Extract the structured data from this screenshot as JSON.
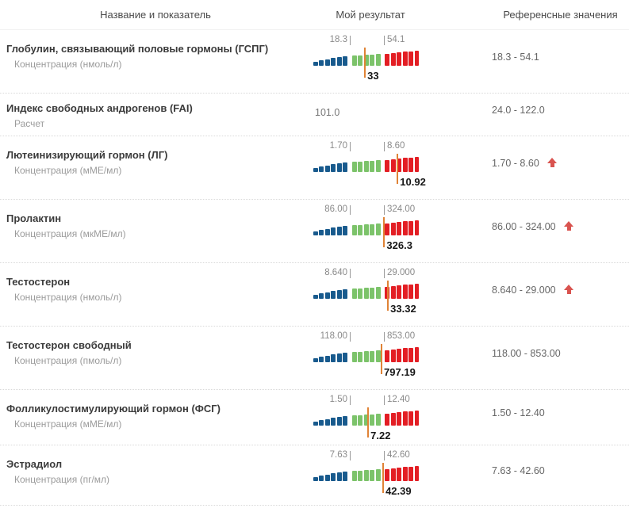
{
  "header": {
    "col_name": "Название и показатель",
    "col_result": "Мой результат",
    "col_reference": "Референсные значения"
  },
  "colors": {
    "bar_blue": "#185a8d",
    "bar_green": "#7cc36a",
    "bar_red": "#e31e24",
    "marker_orange": "#e08336",
    "arrow_red": "#d9534f"
  },
  "rows": [
    {
      "name": "Глобулин, связывающий половые гормоны (ГСПГ)",
      "indicator": "Концентрация (нмоль/л)",
      "type": "chart",
      "range_min": "18.3",
      "range_max": "54.1",
      "result": "33",
      "reference": "18.3 - 54.1",
      "above_range_flag": false,
      "marker_pct": 47.5
    },
    {
      "name": "Индекс свободных андрогенов (FAI)",
      "indicator": "Расчет",
      "type": "text",
      "result": "101.0",
      "reference": "24.0 - 122.0",
      "above_range_flag": false
    },
    {
      "name": "Лютеинизирующий гормон (ЛГ)",
      "indicator": "Концентрация (мМЕ/мл)",
      "type": "chart",
      "range_min": "1.70",
      "range_max": "8.60",
      "result": "10.92",
      "reference": "1.70 - 8.60",
      "above_range_flag": true,
      "marker_pct": 78
    },
    {
      "name": "Пролактин",
      "indicator": "Концентрация (мкМЕ/мл)",
      "type": "chart",
      "range_min": "86.00",
      "range_max": "324.00",
      "result": "326.3",
      "reference": "86.00 - 324.00",
      "above_range_flag": true,
      "marker_pct": 65.5
    },
    {
      "name": "Тестостерон",
      "indicator": "Концентрация (нмоль/л)",
      "type": "chart",
      "range_min": "8.640",
      "range_max": "29.000",
      "result": "33.32",
      "reference": "8.640 - 29.000",
      "above_range_flag": true,
      "marker_pct": 69
    },
    {
      "name": "Тестостерон свободный",
      "indicator": "Концентрация (пмоль/л)",
      "type": "chart",
      "range_min": "118.00",
      "range_max": "853.00",
      "result": "797.19",
      "reference": "118.00 - 853.00",
      "above_range_flag": false,
      "marker_pct": 63
    },
    {
      "name": "Фолликулостимулирующий гормон (ФСГ)",
      "indicator": "Концентрация (мМЕ/мл)",
      "type": "chart",
      "range_min": "1.50",
      "range_max": "12.40",
      "result": "7.22",
      "reference": "1.50 - 12.40",
      "above_range_flag": false,
      "marker_pct": 50.5
    },
    {
      "name": "Эстрадиол",
      "indicator": "Концентрация (пг/мл)",
      "type": "chart",
      "range_min": "7.63",
      "range_max": "42.60",
      "result": "42.39",
      "reference": "7.63 - 42.60",
      "above_range_flag": false,
      "marker_pct": 64.5
    }
  ]
}
